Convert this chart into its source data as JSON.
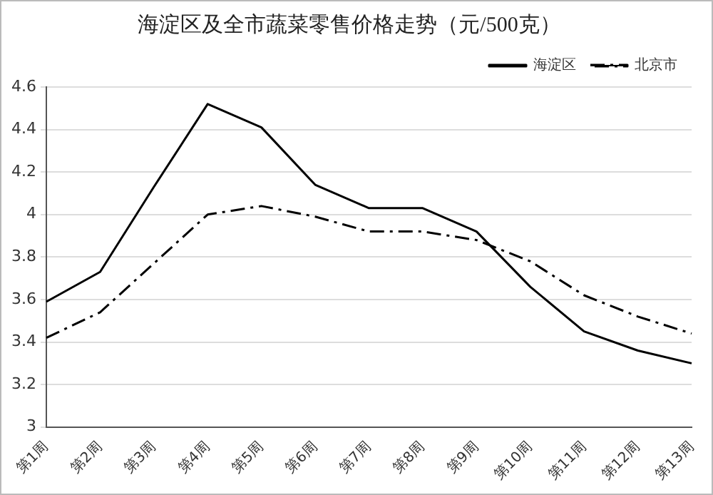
{
  "chart_data": {
    "type": "line",
    "title": "海淀区及全市蔬菜零售价格走势（元/500克）",
    "categories": [
      "第1周",
      "第2周",
      "第3周",
      "第4周",
      "第5周",
      "第6周",
      "第7周",
      "第8周",
      "第9周",
      "第10周",
      "第11周",
      "第12周",
      "第13周"
    ],
    "series": [
      {
        "name": "海淀区",
        "color": "#000000",
        "line_style": "solid",
        "values": [
          3.59,
          3.73,
          4.13,
          4.52,
          4.41,
          4.14,
          4.03,
          4.03,
          3.92,
          3.66,
          3.45,
          3.36,
          3.3
        ]
      },
      {
        "name": "北京市",
        "color": "#000000",
        "line_style": "dashed",
        "values": [
          3.42,
          3.54,
          3.77,
          4.0,
          4.04,
          3.99,
          3.92,
          3.92,
          3.88,
          3.78,
          3.62,
          3.52,
          3.44
        ]
      }
    ],
    "ylim": [
      3,
      4.6
    ],
    "yticks": [
      3,
      3.2,
      3.4,
      3.6,
      3.8,
      4,
      4.2,
      4.4,
      4.6
    ],
    "grid": "y",
    "legend": "top right",
    "marker": "none"
  }
}
